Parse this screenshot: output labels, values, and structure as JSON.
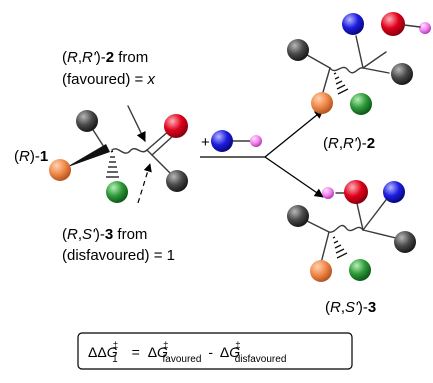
{
  "labels": {
    "reactant": {
      "config": "R",
      "num": "1"
    },
    "product_major": {
      "config": "R",
      "config2": "R'",
      "num": "2"
    },
    "product_minor": {
      "config": "R",
      "config2": "S'",
      "num": "3"
    },
    "favoured_note": {
      "compound": "2",
      "line2_pre": "(favoured) = ",
      "line2_var": "x"
    },
    "disfavoured_note": {
      "compound": "3",
      "line2": "(disfavoured) = 1"
    },
    "from_word": "from",
    "plus": "+"
  },
  "equation": {
    "delta": "ΔΔ",
    "G": "G",
    "dagger": "‡",
    "sub_one": "1",
    "eq": "=",
    "dG": "Δ",
    "sub_fav": "favoured",
    "minus": "-",
    "sub_dis": "disfavoured"
  },
  "colors": {
    "grey": "#4a4a4a",
    "orange": "#f08a4b",
    "green": "#2f9a3a",
    "red": "#e0001b",
    "blue": "#1d1de0",
    "pink": "#f07ff0"
  }
}
